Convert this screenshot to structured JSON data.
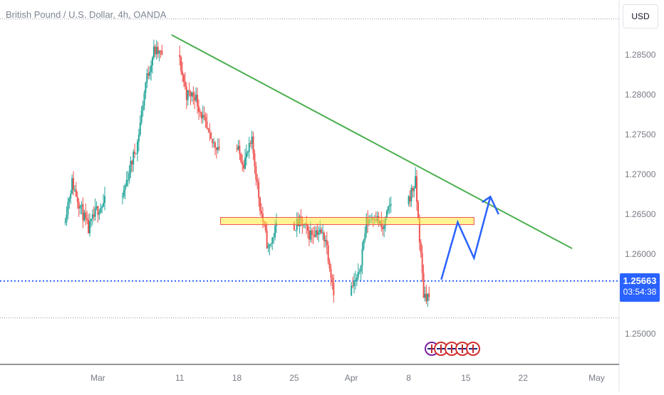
{
  "header": {
    "symbol_title": "British Pound / U.S. Dollar, 4h, OANDA",
    "currency_label": "USD"
  },
  "price_tag": {
    "price": "1.25663",
    "countdown": "03:54:38"
  },
  "colors": {
    "up": "#26a69a",
    "down": "#ef5350",
    "trendline": "#4caf50",
    "projection": "#2962ff",
    "zone_fill": "#ffeb3b",
    "zone_border": "#ef5350",
    "axis_text": "#787b86",
    "price_line": "#2962ff"
  },
  "chart_data": {
    "type": "candlestick",
    "timeframe": "4h",
    "x_ticks": [
      {
        "label": "Mar",
        "date": "2024-03-01"
      },
      {
        "label": "11",
        "date": "2024-03-11"
      },
      {
        "label": "18",
        "date": "2024-03-18"
      },
      {
        "label": "25",
        "date": "2024-03-25"
      },
      {
        "label": "Apr",
        "date": "2024-04-01"
      },
      {
        "label": "8",
        "date": "2024-04-08"
      },
      {
        "label": "15",
        "date": "2024-04-15"
      },
      {
        "label": "22",
        "date": "2024-04-22"
      },
      {
        "label": "May",
        "date": "2024-05-01"
      }
    ],
    "y_ticks": [
      "1.28500",
      "1.28000",
      "1.27500",
      "1.27000",
      "1.26500",
      "1.26000",
      "1.25000"
    ],
    "ylim": [
      1.2445,
      1.2915
    ],
    "last_price": 1.25663,
    "high_line": 1.2895,
    "low_line": 1.252,
    "series": [
      {
        "date": "2024-02-26",
        "close": 1.264
      },
      {
        "date": "2024-02-27",
        "close": 1.269
      },
      {
        "date": "2024-02-28",
        "close": 1.266
      },
      {
        "date": "2024-02-29",
        "close": 1.263
      },
      {
        "date": "2024-03-01",
        "close": 1.2655
      },
      {
        "date": "2024-03-04",
        "close": 1.2665
      },
      {
        "date": "2024-03-05",
        "close": 1.2705
      },
      {
        "date": "2024-03-06",
        "close": 1.274
      },
      {
        "date": "2024-03-07",
        "close": 1.2815
      },
      {
        "date": "2024-03-08",
        "close": 1.2855
      },
      {
        "date": "2024-03-11",
        "close": 1.285
      },
      {
        "date": "2024-03-12",
        "close": 1.28
      },
      {
        "date": "2024-03-13",
        "close": 1.28
      },
      {
        "date": "2024-03-14",
        "close": 1.277
      },
      {
        "date": "2024-03-15",
        "close": 1.274
      },
      {
        "date": "2024-03-18",
        "close": 1.2735
      },
      {
        "date": "2024-03-19",
        "close": 1.2715
      },
      {
        "date": "2024-03-20",
        "close": 1.274
      },
      {
        "date": "2024-03-21",
        "close": 1.266
      },
      {
        "date": "2024-03-22",
        "close": 1.2605
      },
      {
        "date": "2024-03-25",
        "close": 1.2635
      },
      {
        "date": "2024-03-26",
        "close": 1.264
      },
      {
        "date": "2024-03-27",
        "close": 1.2625
      },
      {
        "date": "2024-03-28",
        "close": 1.263
      },
      {
        "date": "2024-03-29",
        "close": 1.262
      },
      {
        "date": "2024-04-01",
        "close": 1.2555
      },
      {
        "date": "2024-04-02",
        "close": 1.257
      },
      {
        "date": "2024-04-03",
        "close": 1.264
      },
      {
        "date": "2024-04-04",
        "close": 1.265
      },
      {
        "date": "2024-04-05",
        "close": 1.263
      },
      {
        "date": "2024-04-08",
        "close": 1.2665
      },
      {
        "date": "2024-04-09",
        "close": 1.269
      },
      {
        "date": "2024-04-10",
        "close": 1.255
      },
      {
        "date": "2024-04-11",
        "close": 1.2545
      },
      {
        "date": "2024-04-12",
        "close": 1.25663
      }
    ],
    "trendline": {
      "from": {
        "date": "2024-03-10",
        "price": 1.2875
      },
      "to": {
        "date": "2024-04-28",
        "price": 1.2607
      }
    },
    "zone": {
      "from": "2024-03-16",
      "to": "2024-04-16",
      "high": 1.2646,
      "low": 1.2637
    },
    "projection": [
      {
        "date": "2024-04-12",
        "price": 1.2568
      },
      {
        "date": "2024-04-14",
        "price": 1.264
      },
      {
        "date": "2024-04-16",
        "price": 1.2595
      },
      {
        "date": "2024-04-18",
        "price": 1.2672
      }
    ],
    "projection_arrow": {
      "left": {
        "date": "2024-04-17",
        "price": 1.2665
      },
      "right": {
        "date": "2024-04-19",
        "price": 1.265
      }
    }
  }
}
